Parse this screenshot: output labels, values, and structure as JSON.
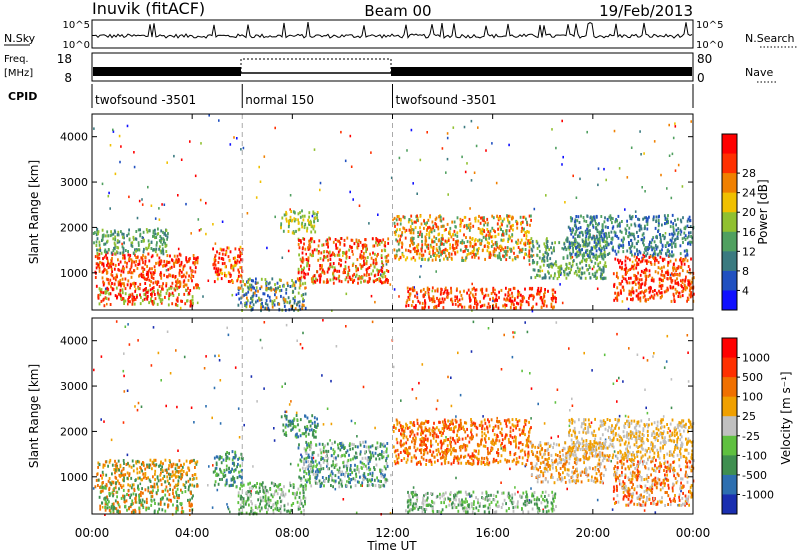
{
  "header": {
    "radar": "Inuvik (fitACF)",
    "beam": "Beam 00",
    "date": "19/Feb/2013"
  },
  "panels": {
    "nsky_label": "N.Sky",
    "nsky_ticks": [
      "10^5",
      "10^0"
    ],
    "nsearch_label": "N.Search",
    "nsearch_ticks": [
      "10^5",
      "10^0"
    ],
    "freq_label": "Freq.",
    "freq_unit": "[MHz]",
    "freq_ticks": [
      "18",
      "8"
    ],
    "nave_label": "Nave",
    "nave_ticks": [
      "80",
      "0"
    ],
    "cpid_label": "CPID",
    "cpid_segments": [
      {
        "name": "twofsound -3501",
        "start": 0,
        "end": 6
      },
      {
        "name": "normal 150",
        "start": 6,
        "end": 12
      },
      {
        "name": "twofsound -3501",
        "start": 12,
        "end": 24
      }
    ]
  },
  "chart_data": [
    {
      "type": "heatmap",
      "name": "power",
      "xlabel": "Time UT",
      "ylabel": "Slant Range [km]",
      "x_ticks": [
        "00:00",
        "04:00",
        "08:00",
        "12:00",
        "16:00",
        "20:00",
        "00:00"
      ],
      "x_range_hours": [
        0,
        24
      ],
      "y_ticks": [
        1000,
        2000,
        3000,
        4000
      ],
      "ylim": [
        180,
        4500
      ],
      "colorbar": {
        "label": "Power [dB]",
        "ticks": [
          "4",
          "8",
          "12",
          "16",
          "20",
          "24",
          "28"
        ],
        "colors": [
          "#1010ff",
          "#2050c0",
          "#3a7a80",
          "#50a060",
          "#90c030",
          "#f0c000",
          "#f08000",
          "#ff3000",
          "#ff0000"
        ]
      },
      "clusters": [
        {
          "t0": 0.1,
          "t1": 4.2,
          "r0": 700,
          "r1": 1450,
          "c": [
            7,
            8,
            6
          ]
        },
        {
          "t0": 0.2,
          "t1": 4.0,
          "r0": 300,
          "r1": 700,
          "c": [
            8,
            7,
            4
          ]
        },
        {
          "t0": 0,
          "t1": 3,
          "r0": 1450,
          "r1": 2000,
          "c": [
            3,
            2,
            4
          ]
        },
        {
          "t0": 4.8,
          "t1": 6.0,
          "r0": 800,
          "r1": 1600,
          "c": [
            7,
            8,
            5
          ]
        },
        {
          "t0": 5.8,
          "t1": 8.5,
          "r0": 200,
          "r1": 900,
          "c": [
            1,
            2,
            4,
            6
          ]
        },
        {
          "t0": 8.2,
          "t1": 11.8,
          "r0": 800,
          "r1": 1800,
          "c": [
            6,
            7,
            8,
            4
          ]
        },
        {
          "t0": 7.5,
          "t1": 9.0,
          "r0": 1900,
          "r1": 2400,
          "c": [
            3,
            4,
            5
          ]
        },
        {
          "t0": 12.0,
          "t1": 17.5,
          "r0": 1300,
          "r1": 2300,
          "c": [
            5,
            6,
            7,
            3
          ]
        },
        {
          "t0": 12.5,
          "t1": 18.5,
          "r0": 250,
          "r1": 700,
          "c": [
            7,
            8,
            6
          ]
        },
        {
          "t0": 17.5,
          "t1": 20.5,
          "r0": 900,
          "r1": 1800,
          "c": [
            3,
            4,
            2
          ]
        },
        {
          "t0": 20.8,
          "t1": 24,
          "r0": 400,
          "r1": 1400,
          "c": [
            8,
            7,
            6
          ]
        },
        {
          "t0": 19,
          "t1": 24,
          "r0": 1400,
          "r1": 2300,
          "c": [
            2,
            3,
            1
          ]
        }
      ]
    },
    {
      "type": "heatmap",
      "name": "velocity",
      "xlabel": "Time UT",
      "ylabel": "Slant Range [km]",
      "x_ticks": [
        "00:00",
        "04:00",
        "08:00",
        "12:00",
        "16:00",
        "20:00",
        "00:00"
      ],
      "x_range_hours": [
        0,
        24
      ],
      "y_ticks": [
        1000,
        2000,
        3000,
        4000
      ],
      "ylim": [
        180,
        4500
      ],
      "colorbar": {
        "label": "Velocity [m s⁻¹]",
        "ticks": [
          "1000",
          "500",
          "100",
          "25",
          "-25",
          "-100",
          "-500",
          "-1000"
        ],
        "colors": [
          "#1a2fb0",
          "#2d6fb0",
          "#3f8f50",
          "#5fc040",
          "#c0c0c0",
          "#f0a000",
          "#f07000",
          "#ff3000",
          "#ff0000"
        ]
      },
      "clusters": [
        {
          "t0": 0.1,
          "t1": 4.2,
          "r0": 800,
          "r1": 1400,
          "c": [
            5,
            6,
            2
          ]
        },
        {
          "t0": 0.2,
          "t1": 4.0,
          "r0": 250,
          "r1": 800,
          "c": [
            2,
            3,
            6
          ]
        },
        {
          "t0": 4.8,
          "t1": 6.0,
          "r0": 800,
          "r1": 1600,
          "c": [
            1,
            2,
            3
          ]
        },
        {
          "t0": 5.8,
          "t1": 8.5,
          "r0": 200,
          "r1": 900,
          "c": [
            4,
            2,
            3
          ]
        },
        {
          "t0": 8.2,
          "t1": 11.8,
          "r0": 800,
          "r1": 1800,
          "c": [
            2,
            1,
            3,
            4
          ]
        },
        {
          "t0": 7.5,
          "t1": 9.0,
          "r0": 1900,
          "r1": 2400,
          "c": [
            2,
            3,
            1
          ]
        },
        {
          "t0": 12.0,
          "t1": 17.5,
          "r0": 1300,
          "r1": 2300,
          "c": [
            6,
            5,
            7
          ]
        },
        {
          "t0": 12.5,
          "t1": 18.5,
          "r0": 250,
          "r1": 700,
          "c": [
            2,
            3,
            4
          ]
        },
        {
          "t0": 17.5,
          "t1": 20.5,
          "r0": 900,
          "r1": 1800,
          "c": [
            6,
            5,
            4
          ]
        },
        {
          "t0": 20.8,
          "t1": 24,
          "r0": 400,
          "r1": 1400,
          "c": [
            6,
            7,
            5,
            4
          ]
        },
        {
          "t0": 19,
          "t1": 24,
          "r0": 1400,
          "r1": 2300,
          "c": [
            5,
            4
          ]
        }
      ]
    }
  ]
}
